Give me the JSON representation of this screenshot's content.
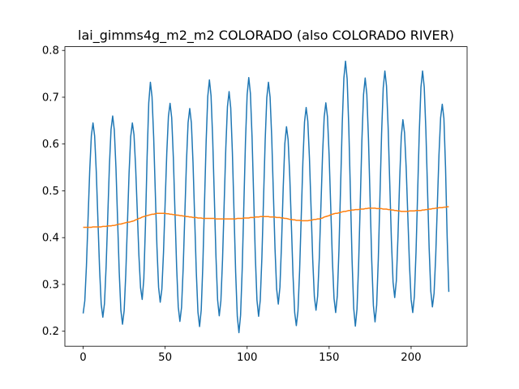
{
  "chart_data": {
    "type": "line",
    "title": "lai_gimms4g_m2_m2 COLORADO (also COLORADO RIVER)",
    "xlim": [
      -11.15,
      234.15
    ],
    "xticks": [
      0,
      50,
      100,
      150,
      200
    ],
    "ylim": [
      0.168,
      0.808
    ],
    "yticks": [
      0.2,
      0.3,
      0.4,
      0.5,
      0.6,
      0.7,
      0.8
    ],
    "series": [
      {
        "color": "#1f77b4",
        "values": [
          0.238,
          0.265,
          0.34,
          0.442,
          0.543,
          0.618,
          0.645,
          0.617,
          0.541,
          0.438,
          0.334,
          0.258,
          0.23,
          0.259,
          0.338,
          0.445,
          0.553,
          0.631,
          0.66,
          0.63,
          0.549,
          0.438,
          0.326,
          0.245,
          0.215,
          0.244,
          0.323,
          0.43,
          0.538,
          0.616,
          0.645,
          0.62,
          0.551,
          0.457,
          0.362,
          0.293,
          0.268,
          0.312,
          0.428,
          0.572,
          0.688,
          0.732,
          0.701,
          0.615,
          0.497,
          0.38,
          0.294,
          0.262,
          0.29,
          0.368,
          0.475,
          0.581,
          0.659,
          0.687,
          0.656,
          0.571,
          0.454,
          0.338,
          0.252,
          0.221,
          0.251,
          0.335,
          0.449,
          0.562,
          0.646,
          0.676,
          0.645,
          0.56,
          0.443,
          0.327,
          0.241,
          0.21,
          0.245,
          0.342,
          0.474,
          0.605,
          0.702,
          0.737,
          0.703,
          0.611,
          0.485,
          0.359,
          0.267,
          0.233,
          0.265,
          0.353,
          0.473,
          0.592,
          0.68,
          0.712,
          0.677,
          0.583,
          0.455,
          0.326,
          0.232,
          0.197,
          0.234,
          0.333,
          0.47,
          0.606,
          0.705,
          0.742,
          0.708,
          0.615,
          0.487,
          0.36,
          0.266,
          0.232,
          0.266,
          0.357,
          0.482,
          0.607,
          0.699,
          0.732,
          0.7,
          0.614,
          0.495,
          0.377,
          0.29,
          0.258,
          0.294,
          0.389,
          0.506,
          0.601,
          0.637,
          0.609,
          0.531,
          0.425,
          0.318,
          0.24,
          0.212,
          0.243,
          0.329,
          0.445,
          0.562,
          0.647,
          0.678,
          0.649,
          0.57,
          0.462,
          0.353,
          0.274,
          0.245,
          0.275,
          0.356,
          0.467,
          0.577,
          0.658,
          0.688,
          0.658,
          0.576,
          0.464,
          0.352,
          0.27,
          0.24,
          0.276,
          0.374,
          0.509,
          0.643,
          0.741,
          0.777,
          0.739,
          0.636,
          0.494,
          0.352,
          0.249,
          0.211,
          0.247,
          0.344,
          0.476,
          0.609,
          0.706,
          0.741,
          0.706,
          0.611,
          0.481,
          0.35,
          0.255,
          0.22,
          0.256,
          0.354,
          0.488,
          0.622,
          0.72,
          0.756,
          0.724,
          0.635,
          0.514,
          0.393,
          0.305,
          0.272,
          0.308,
          0.403,
          0.521,
          0.616,
          0.652,
          0.624,
          0.549,
          0.446,
          0.343,
          0.268,
          0.24,
          0.275,
          0.369,
          0.498,
          0.627,
          0.721,
          0.756,
          0.722,
          0.63,
          0.504,
          0.378,
          0.286,
          0.252,
          0.281,
          0.36,
          0.469,
          0.577,
          0.656,
          0.685,
          0.655,
          0.55,
          0.4,
          0.284
        ]
      },
      {
        "color": "#ff7f0e",
        "values": [
          0.422,
          0.422,
          0.422,
          0.422,
          0.422,
          0.422,
          0.423,
          0.423,
          0.423,
          0.423,
          0.423,
          0.423,
          0.424,
          0.424,
          0.424,
          0.425,
          0.425,
          0.425,
          0.426,
          0.426,
          0.427,
          0.428,
          0.429,
          0.429,
          0.43,
          0.431,
          0.432,
          0.433,
          0.433,
          0.434,
          0.435,
          0.436,
          0.438,
          0.439,
          0.441,
          0.442,
          0.444,
          0.445,
          0.446,
          0.447,
          0.448,
          0.449,
          0.45,
          0.45,
          0.451,
          0.452,
          0.452,
          0.452,
          0.452,
          0.452,
          0.452,
          0.451,
          0.451,
          0.45,
          0.45,
          0.449,
          0.449,
          0.448,
          0.448,
          0.447,
          0.447,
          0.446,
          0.446,
          0.445,
          0.445,
          0.444,
          0.444,
          0.443,
          0.443,
          0.443,
          0.442,
          0.442,
          0.442,
          0.441,
          0.441,
          0.441,
          0.441,
          0.441,
          0.441,
          0.441,
          0.441,
          0.44,
          0.44,
          0.44,
          0.44,
          0.44,
          0.44,
          0.44,
          0.44,
          0.44,
          0.44,
          0.44,
          0.44,
          0.44,
          0.441,
          0.441,
          0.441,
          0.441,
          0.442,
          0.442,
          0.442,
          0.442,
          0.443,
          0.443,
          0.443,
          0.444,
          0.444,
          0.444,
          0.445,
          0.445,
          0.445,
          0.445,
          0.445,
          0.445,
          0.444,
          0.444,
          0.444,
          0.444,
          0.443,
          0.443,
          0.443,
          0.442,
          0.442,
          0.441,
          0.441,
          0.44,
          0.439,
          0.439,
          0.438,
          0.438,
          0.437,
          0.437,
          0.437,
          0.436,
          0.436,
          0.436,
          0.436,
          0.436,
          0.437,
          0.437,
          0.438,
          0.439,
          0.439,
          0.44,
          0.44,
          0.441,
          0.442,
          0.444,
          0.445,
          0.446,
          0.447,
          0.449,
          0.45,
          0.451,
          0.452,
          0.452,
          0.453,
          0.454,
          0.455,
          0.456,
          0.456,
          0.457,
          0.458,
          0.458,
          0.459,
          0.459,
          0.46,
          0.46,
          0.46,
          0.461,
          0.461,
          0.461,
          0.462,
          0.462,
          0.463,
          0.463,
          0.463,
          0.463,
          0.463,
          0.462,
          0.462,
          0.462,
          0.462,
          0.461,
          0.461,
          0.461,
          0.46,
          0.46,
          0.459,
          0.459,
          0.458,
          0.458,
          0.457,
          0.457,
          0.456,
          0.456,
          0.456,
          0.456,
          0.456,
          0.457,
          0.457,
          0.457,
          0.457,
          0.458,
          0.458,
          0.458,
          0.458,
          0.459,
          0.459,
          0.46,
          0.46,
          0.461,
          0.461,
          0.462,
          0.462,
          0.463,
          0.463,
          0.464,
          0.464,
          0.464,
          0.465,
          0.465,
          0.466,
          0.466
        ]
      }
    ]
  }
}
